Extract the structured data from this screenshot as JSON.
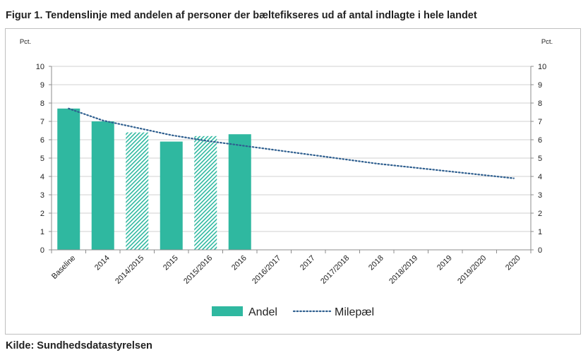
{
  "title": "Figur 1. Tendenslinje med andelen af personer der bæltefikseres ud af antal indlagte i hele landet",
  "source": "Kilde: Sundhedsdatastyrelsen",
  "chart_data": {
    "type": "bar",
    "categories": [
      "Baseline",
      "2014",
      "2014/2015",
      "2015",
      "2015/2016",
      "2016",
      "2016/2017",
      "2017",
      "2017/2018",
      "2018",
      "2018/2019",
      "2019",
      "2019/2020",
      "2020"
    ],
    "series": [
      {
        "name": "Andel",
        "type": "bar",
        "values": [
          7.7,
          7.0,
          6.4,
          5.9,
          6.2,
          6.3,
          null,
          null,
          null,
          null,
          null,
          null,
          null,
          null
        ],
        "hatched": [
          false,
          false,
          true,
          false,
          true,
          false,
          false,
          false,
          false,
          false,
          false,
          false,
          false,
          false
        ]
      },
      {
        "name": "Milepæl",
        "type": "line",
        "style": "dotted",
        "values": [
          7.7,
          7.05,
          6.65,
          6.25,
          5.95,
          5.7,
          5.45,
          5.2,
          4.95,
          4.7,
          4.5,
          4.3,
          4.1,
          3.9
        ]
      }
    ],
    "ylabel_left": "Pct.",
    "ylabel_right": "Pct.",
    "ylim": [
      0,
      10
    ],
    "yticks": [
      "0",
      "1",
      "2",
      "3",
      "4",
      "5",
      "6",
      "7",
      "8",
      "9",
      "10"
    ],
    "grid": true,
    "legend": {
      "position": "bottom",
      "entries": [
        "Andel",
        "Milepæl"
      ]
    },
    "colors": {
      "bar": "#2fb8a0",
      "line": "#2f5f8f",
      "grid": "#d0d0d0",
      "axis": "#8c8c8c"
    }
  }
}
